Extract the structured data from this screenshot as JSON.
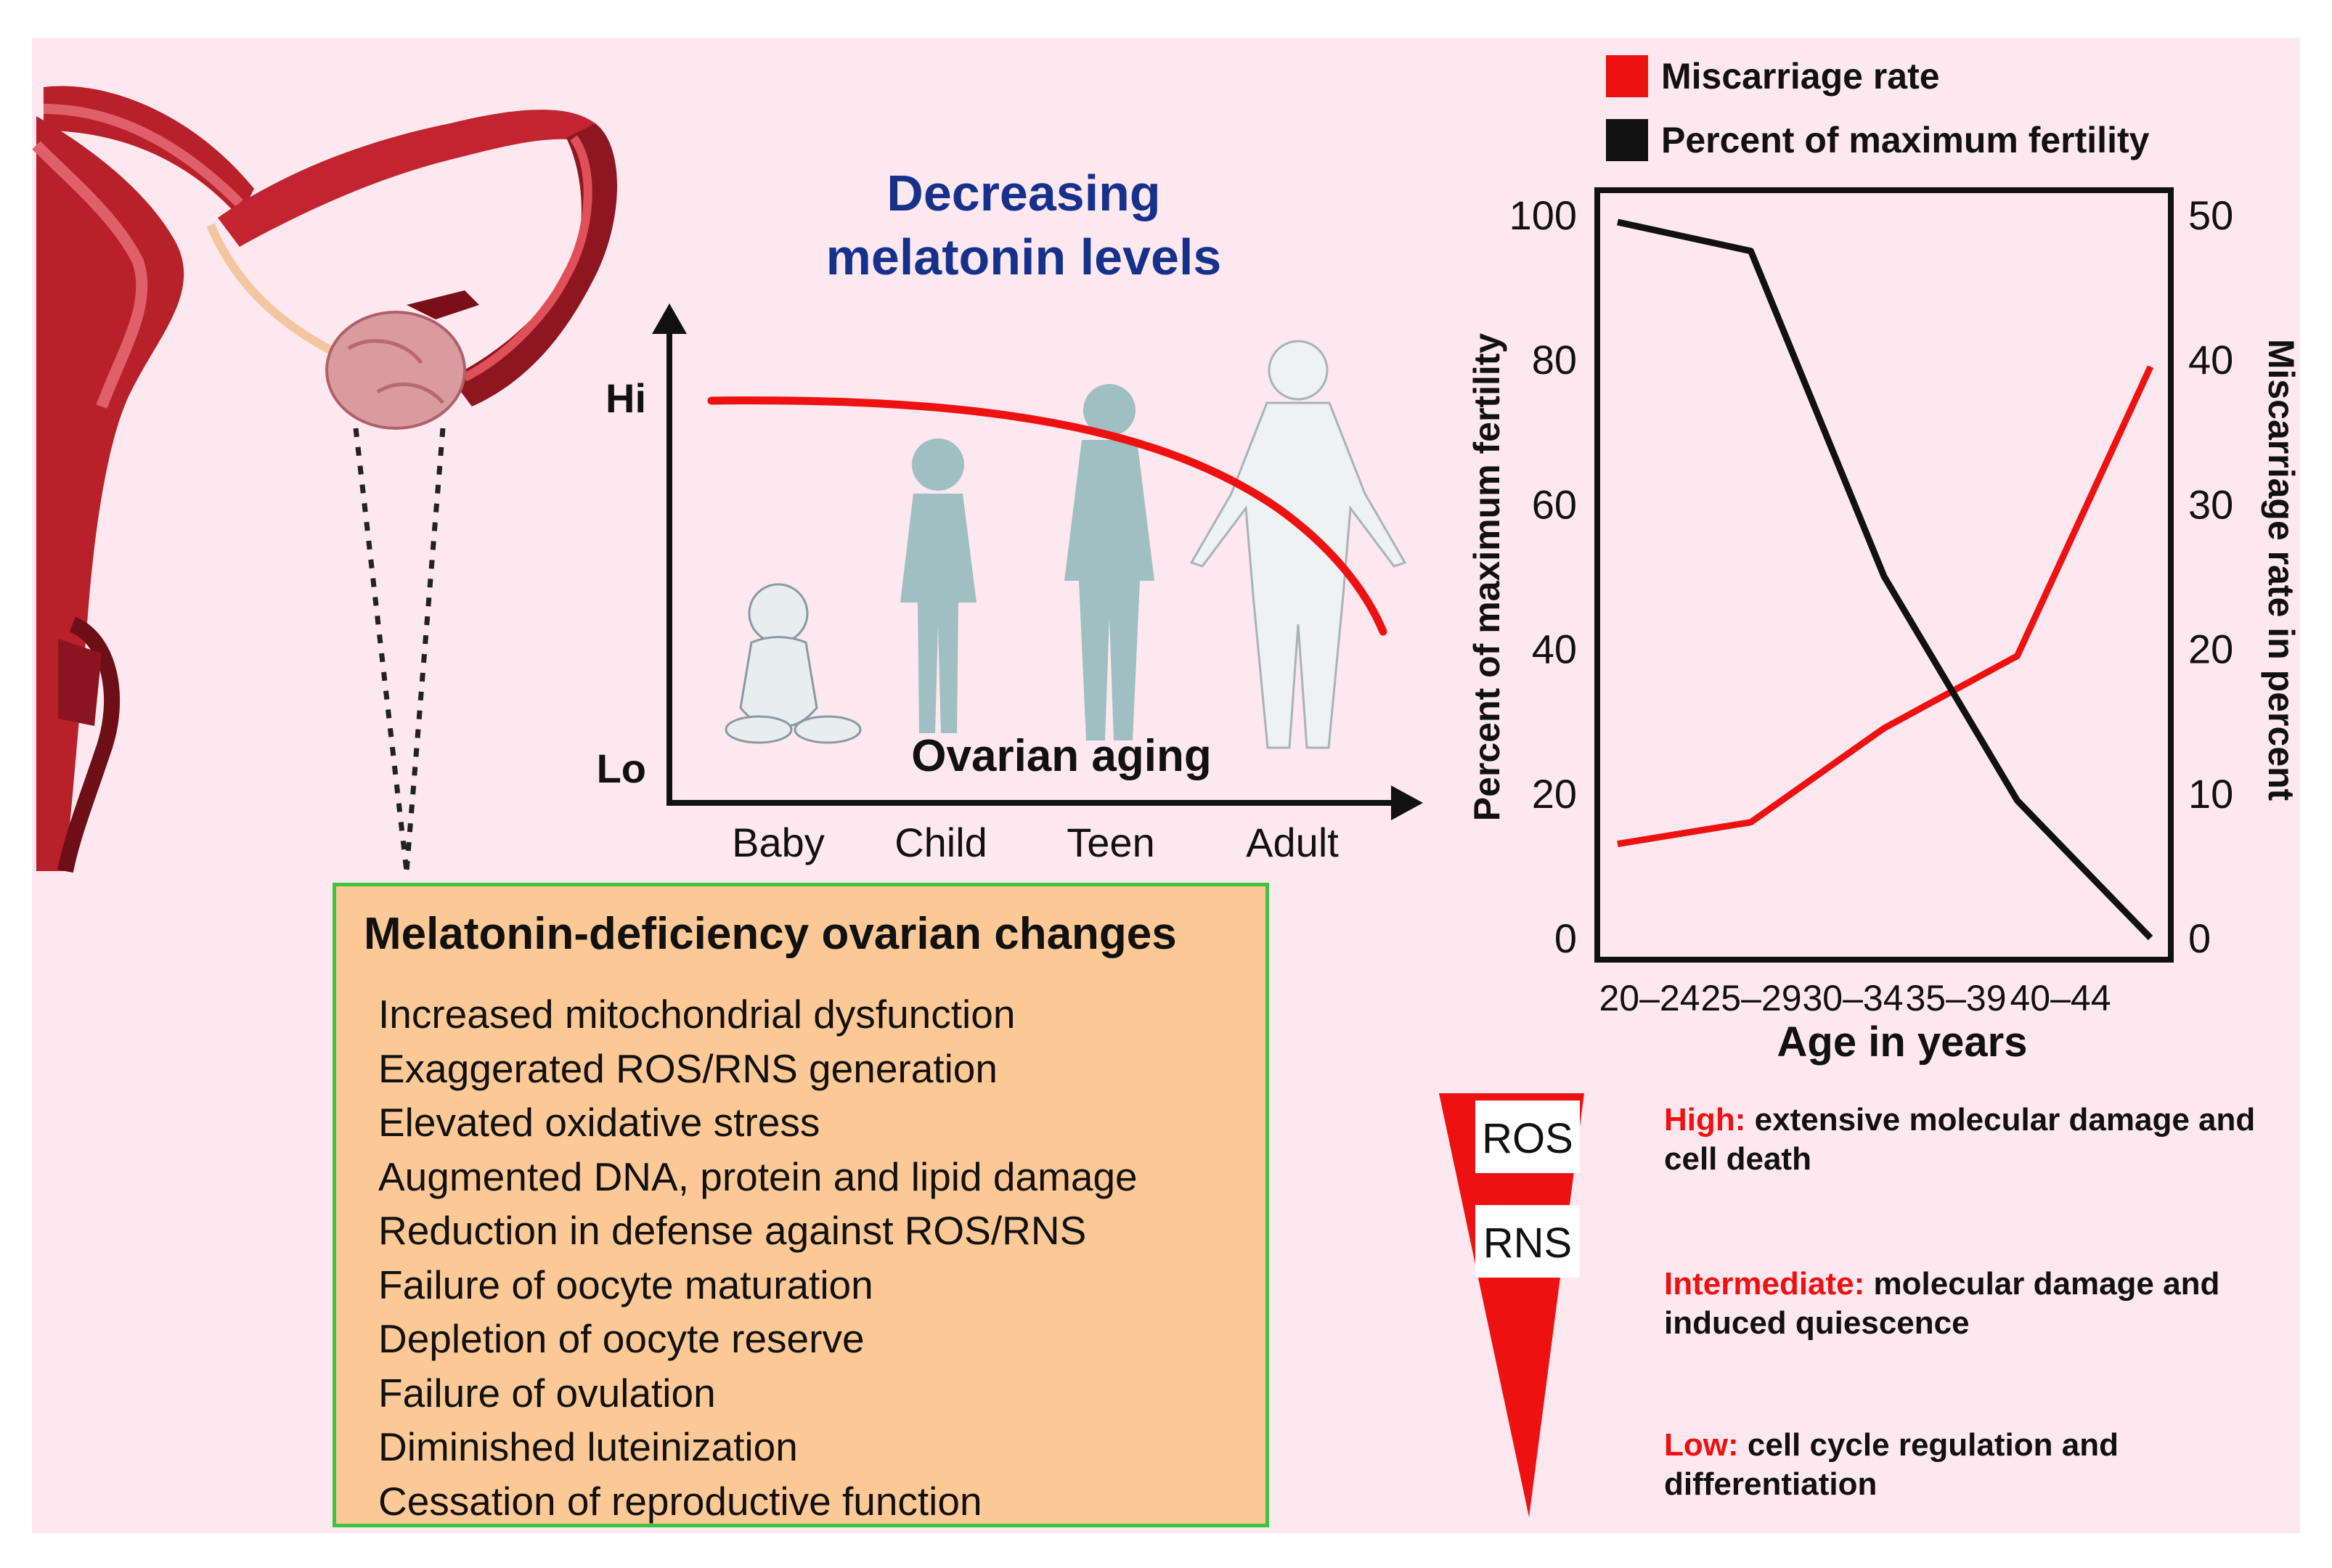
{
  "melatonin_chart": {
    "title_line1": "Decreasing",
    "title_line2": "melatonin levels",
    "y_high": "Hi",
    "y_low": "Lo",
    "overlay_label": "Ovarian aging",
    "stages": [
      "Baby",
      "Child",
      "Teen",
      "Adult"
    ]
  },
  "changes": {
    "title": "Melatonin-deficiency ovarian changes",
    "items": [
      "Increased mitochondrial dysfunction",
      "Exaggerated ROS/RNS generation",
      "Elevated oxidative stress",
      "Augmented DNA, protein and lipid damage",
      "Reduction in defense against ROS/RNS",
      "Failure of oocyte maturation",
      "Depletion of oocyte reserve",
      "Failure of ovulation",
      "Diminished luteinization",
      "Cessation of reproductive function"
    ]
  },
  "chart_data": {
    "type": "line",
    "title": "",
    "xlabel": "Age in years",
    "ylabel": "Percent of maximum fertility",
    "y2label": "Miscarriage rate in percent",
    "categories": [
      "20–24",
      "25–29",
      "30–34",
      "35–39",
      "40–44"
    ],
    "ylim": [
      0,
      100
    ],
    "y2lim": [
      0,
      50
    ],
    "yticks": [
      0,
      20,
      40,
      60,
      80,
      100
    ],
    "y2ticks": [
      0,
      10,
      20,
      30,
      40,
      50
    ],
    "legend_position": "top",
    "series": [
      {
        "name": "Miscarriage rate",
        "axis": "right",
        "color": "#ee1111",
        "values": [
          6.5,
          8,
          14.5,
          19.5,
          39.5
        ]
      },
      {
        "name": "Percent of maximum fertility",
        "axis": "left",
        "color": "#111111",
        "values": [
          99,
          95,
          50,
          19,
          0
        ]
      }
    ]
  },
  "ros_levels": {
    "ros_label": "ROS",
    "rns_label": "RNS",
    "levels": [
      {
        "level": "High:",
        "desc": "extensive molecular damage and cell death"
      },
      {
        "level": "Intermediate:",
        "desc": "molecular damage and induced quiescence"
      },
      {
        "level": "Low:",
        "desc": "cell cycle regulation and differentiation"
      }
    ]
  },
  "colors": {
    "red": "#ee1111",
    "background": "#fde8ef",
    "box_fill": "#fbc896",
    "box_border": "#3ec43e",
    "title_blue": "#16318c"
  }
}
